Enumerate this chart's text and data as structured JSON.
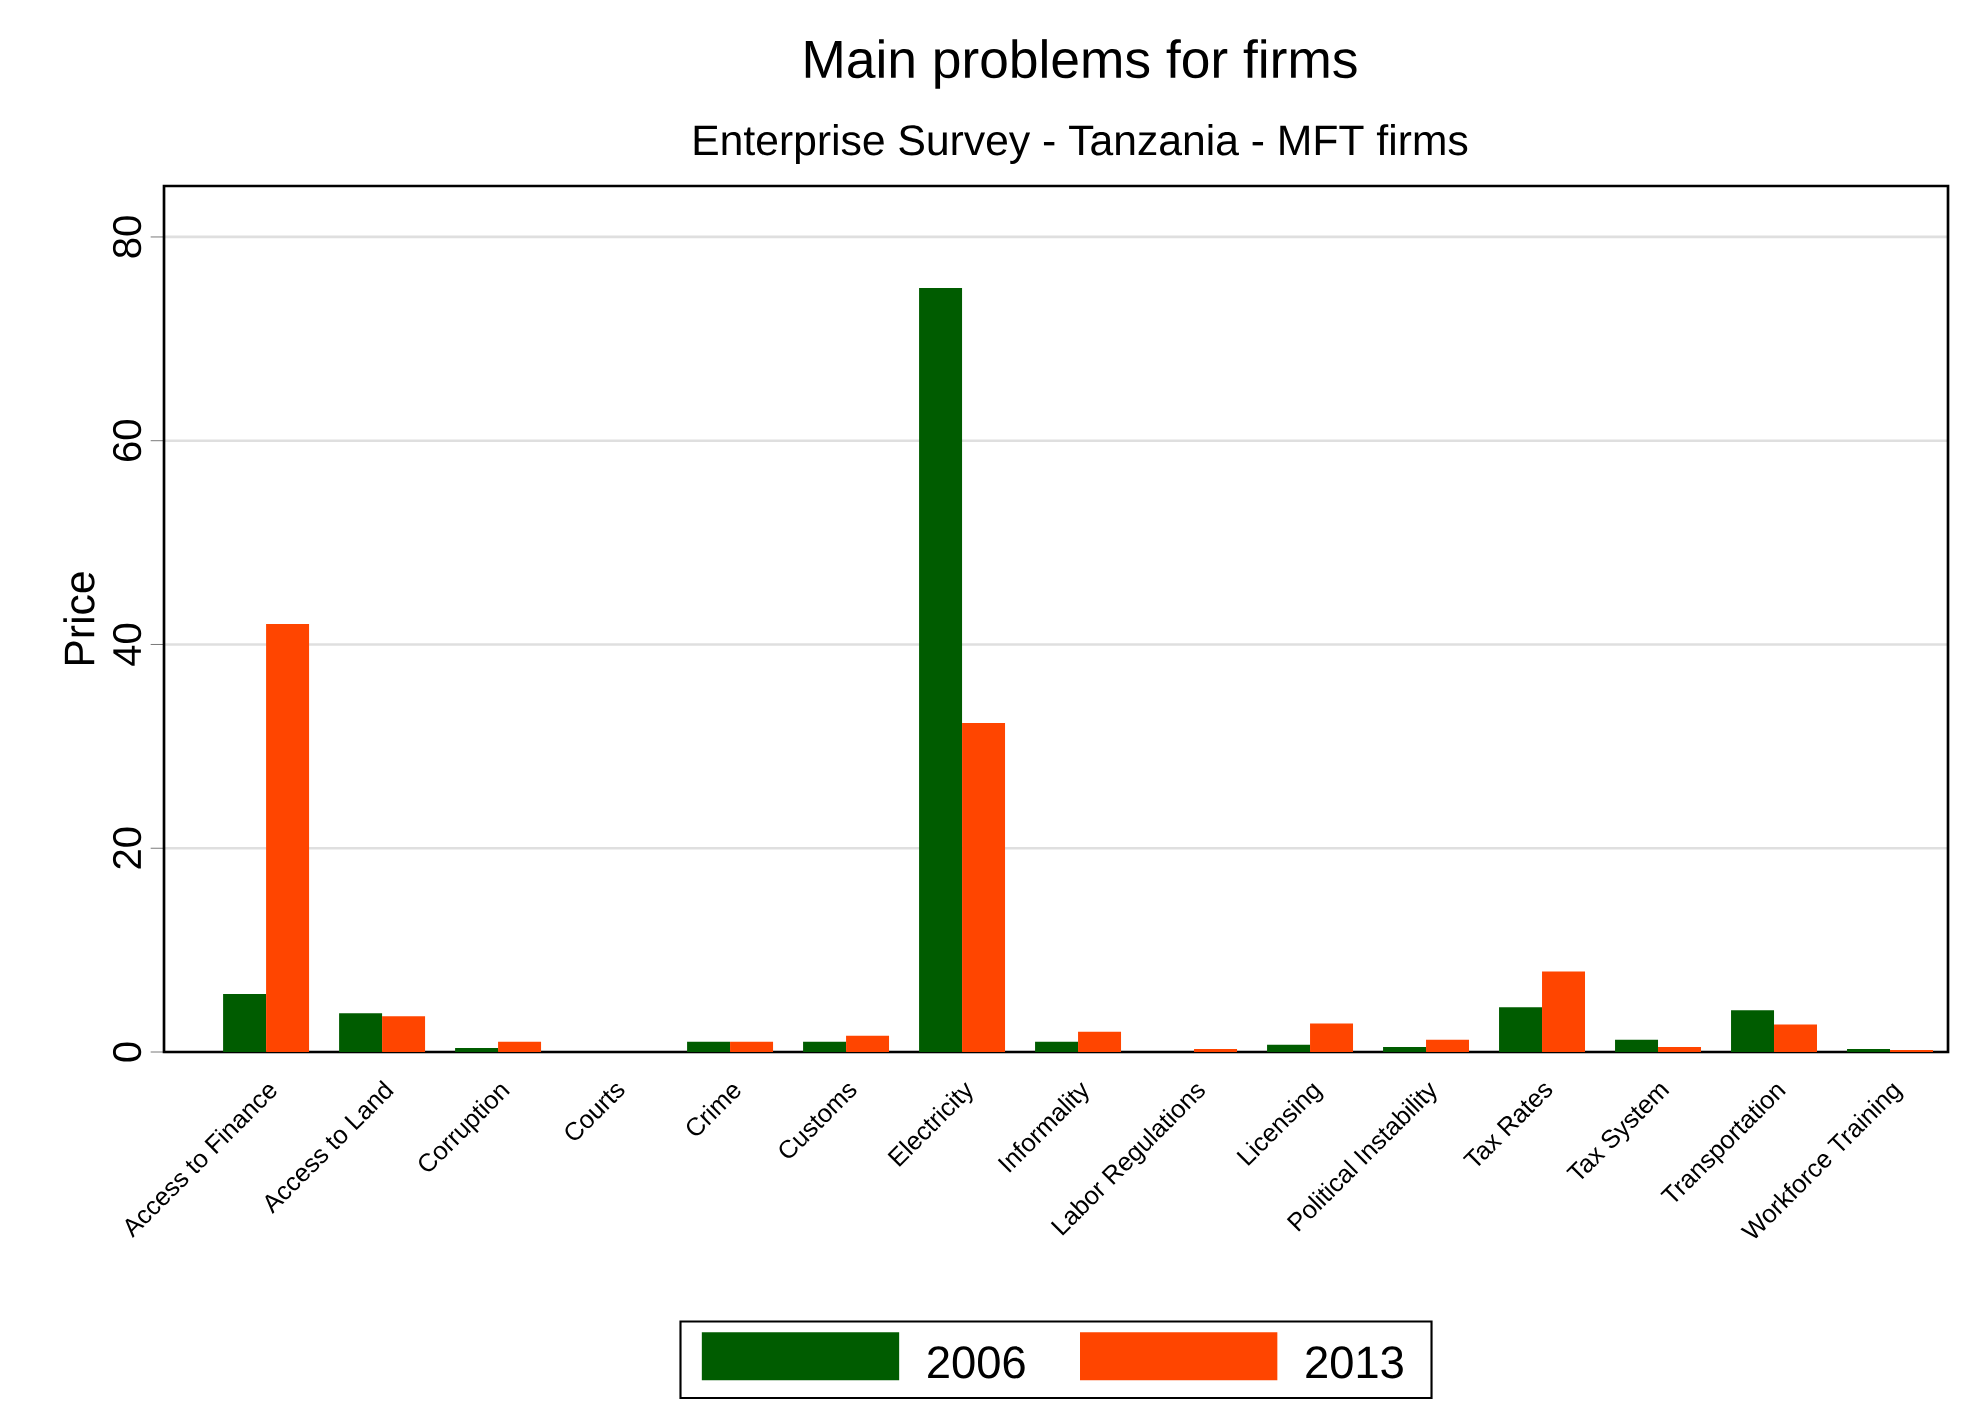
{
  "chart_data": {
    "type": "bar",
    "title": "Main problems for firms",
    "subtitle": "Enterprise Survey - Tanzania - MFT firms",
    "ylabel": "Price",
    "categories": [
      "Access to Finance",
      "Access to Land",
      "Corruption",
      "Courts",
      "Crime",
      "Customs",
      "Electricity",
      "Informality",
      "Labor Regulations",
      "Licensing",
      "Political Instability",
      "Tax Rates",
      "Tax System",
      "Transportation",
      "Workforce Training"
    ],
    "series": [
      {
        "name": "2006",
        "color": "#005c00",
        "values": [
          5.7,
          3.8,
          0.4,
          0,
          1.0,
          1.0,
          75,
          1.0,
          0,
          0.7,
          0.5,
          4.4,
          1.2,
          4.1,
          0.3
        ]
      },
      {
        "name": "2013",
        "color": "#ff4500",
        "values": [
          42,
          3.5,
          1.0,
          0,
          1.0,
          1.6,
          32.3,
          2.0,
          0.3,
          2.8,
          1.2,
          7.9,
          0.5,
          2.7,
          0.2
        ]
      }
    ],
    "ylim": [
      0,
      85
    ],
    "yticks": [
      0,
      20,
      40,
      60,
      80
    ],
    "grid": "y",
    "legend": "bottom"
  }
}
